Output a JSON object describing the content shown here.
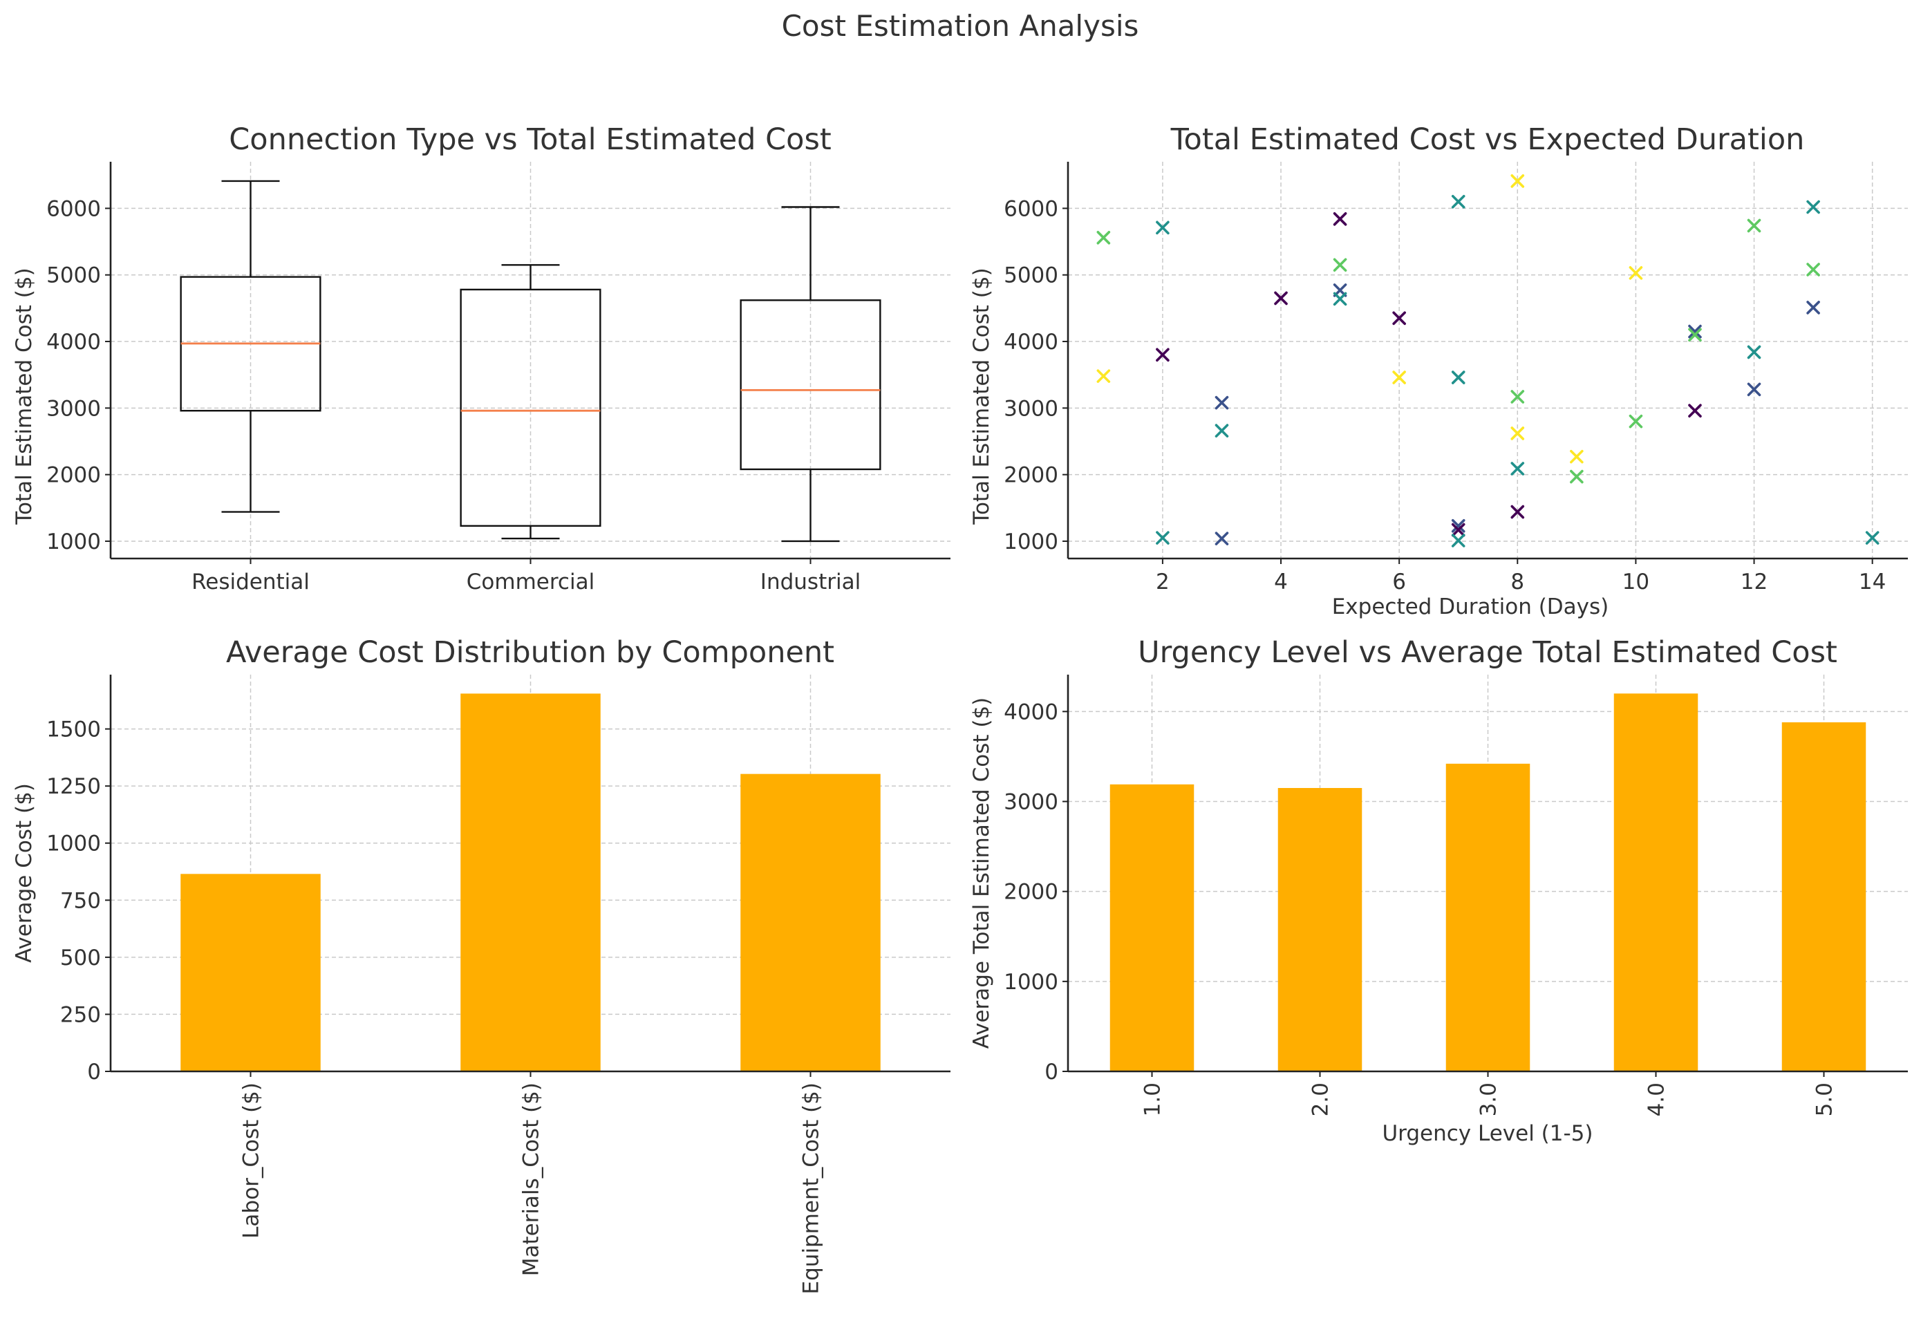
{
  "figure": {
    "title": "Cost Estimation Analysis"
  },
  "colors": {
    "bar": "#FFAE00",
    "median": "#F47F4A",
    "box": "#111111",
    "viridis": [
      "#440154",
      "#3b528b",
      "#21918c",
      "#5ec962",
      "#fde725"
    ]
  },
  "chart_data": [
    {
      "id": "box",
      "type": "box",
      "title": "Connection Type vs Total Estimated Cost",
      "xlabel": "",
      "ylabel": "Total Estimated Cost ($)",
      "ylim": [
        740,
        6700
      ],
      "yticks": [
        1000,
        2000,
        3000,
        4000,
        5000,
        6000
      ],
      "categories": [
        "Residential",
        "Commercial",
        "Industrial"
      ],
      "boxes": [
        {
          "whislo": 1440,
          "q1": 2960,
          "med": 3970,
          "q3": 4970,
          "whishi": 6410
        },
        {
          "whislo": 1040,
          "q1": 1230,
          "med": 2960,
          "q3": 4780,
          "whishi": 5150
        },
        {
          "whislo": 1000,
          "q1": 2080,
          "med": 3270,
          "q3": 4620,
          "whishi": 6020
        }
      ]
    },
    {
      "id": "scatter",
      "type": "scatter",
      "title": "Total Estimated Cost vs Expected Duration",
      "xlabel": "Expected Duration (Days)",
      "ylabel": "Total Estimated Cost ($)",
      "xlim": [
        0.4,
        14.6
      ],
      "ylim": [
        740,
        6700
      ],
      "xticks": [
        2,
        4,
        6,
        8,
        10,
        12,
        14
      ],
      "yticks": [
        1000,
        2000,
        3000,
        4000,
        5000,
        6000
      ],
      "marker": "x",
      "points": [
        {
          "x": 1,
          "y": 5560,
          "c": 3
        },
        {
          "x": 1,
          "y": 3480,
          "c": 4
        },
        {
          "x": 2,
          "y": 5710,
          "c": 2
        },
        {
          "x": 2,
          "y": 3800,
          "c": 0
        },
        {
          "x": 2,
          "y": 1050,
          "c": 2
        },
        {
          "x": 3,
          "y": 3080,
          "c": 1
        },
        {
          "x": 3,
          "y": 2660,
          "c": 2
        },
        {
          "x": 3,
          "y": 1040,
          "c": 1
        },
        {
          "x": 4,
          "y": 4650,
          "c": 0
        },
        {
          "x": 5,
          "y": 5840,
          "c": 0
        },
        {
          "x": 5,
          "y": 5150,
          "c": 3
        },
        {
          "x": 5,
          "y": 4770,
          "c": 1
        },
        {
          "x": 5,
          "y": 4640,
          "c": 2
        },
        {
          "x": 6,
          "y": 4350,
          "c": 0
        },
        {
          "x": 6,
          "y": 3460,
          "c": 4
        },
        {
          "x": 7,
          "y": 6100,
          "c": 2
        },
        {
          "x": 7,
          "y": 3460,
          "c": 2
        },
        {
          "x": 7,
          "y": 1230,
          "c": 1
        },
        {
          "x": 7,
          "y": 1170,
          "c": 0
        },
        {
          "x": 7,
          "y": 1010,
          "c": 2
        },
        {
          "x": 8,
          "y": 6410,
          "c": 4
        },
        {
          "x": 8,
          "y": 3170,
          "c": 3
        },
        {
          "x": 8,
          "y": 2620,
          "c": 4
        },
        {
          "x": 8,
          "y": 2090,
          "c": 2
        },
        {
          "x": 8,
          "y": 1440,
          "c": 0
        },
        {
          "x": 9,
          "y": 2270,
          "c": 4
        },
        {
          "x": 9,
          "y": 1970,
          "c": 3
        },
        {
          "x": 10,
          "y": 5030,
          "c": 4
        },
        {
          "x": 10,
          "y": 2800,
          "c": 3
        },
        {
          "x": 11,
          "y": 4150,
          "c": 1
        },
        {
          "x": 11,
          "y": 4100,
          "c": 3
        },
        {
          "x": 11,
          "y": 2960,
          "c": 0
        },
        {
          "x": 12,
          "y": 5740,
          "c": 3
        },
        {
          "x": 12,
          "y": 3840,
          "c": 2
        },
        {
          "x": 12,
          "y": 3280,
          "c": 1
        },
        {
          "x": 13,
          "y": 6020,
          "c": 2
        },
        {
          "x": 13,
          "y": 5080,
          "c": 3
        },
        {
          "x": 13,
          "y": 4510,
          "c": 1
        },
        {
          "x": 14,
          "y": 1050,
          "c": 2
        }
      ]
    },
    {
      "id": "bar1",
      "type": "bar",
      "title": "Average Cost Distribution by Component",
      "xlabel": "",
      "ylabel": "Average Cost ($)",
      "ylim": [
        0,
        1738
      ],
      "yticks": [
        0,
        250,
        500,
        750,
        1000,
        1250,
        1500
      ],
      "categories": [
        "Labor_Cost ($)",
        "Materials_Cost ($)",
        "Equipment_Cost ($)"
      ],
      "values": [
        865,
        1655,
        1303
      ]
    },
    {
      "id": "bar2",
      "type": "bar",
      "title": "Urgency Level vs Average Total Estimated Cost",
      "xlabel": "Urgency Level (1-5)",
      "ylabel": "Average Total Estimated Cost ($)",
      "ylim": [
        0,
        4410
      ],
      "yticks": [
        0,
        1000,
        2000,
        3000,
        4000
      ],
      "categories": [
        "1.0",
        "2.0",
        "3.0",
        "4.0",
        "5.0"
      ],
      "values": [
        3190,
        3150,
        3420,
        4200,
        3880
      ]
    }
  ]
}
